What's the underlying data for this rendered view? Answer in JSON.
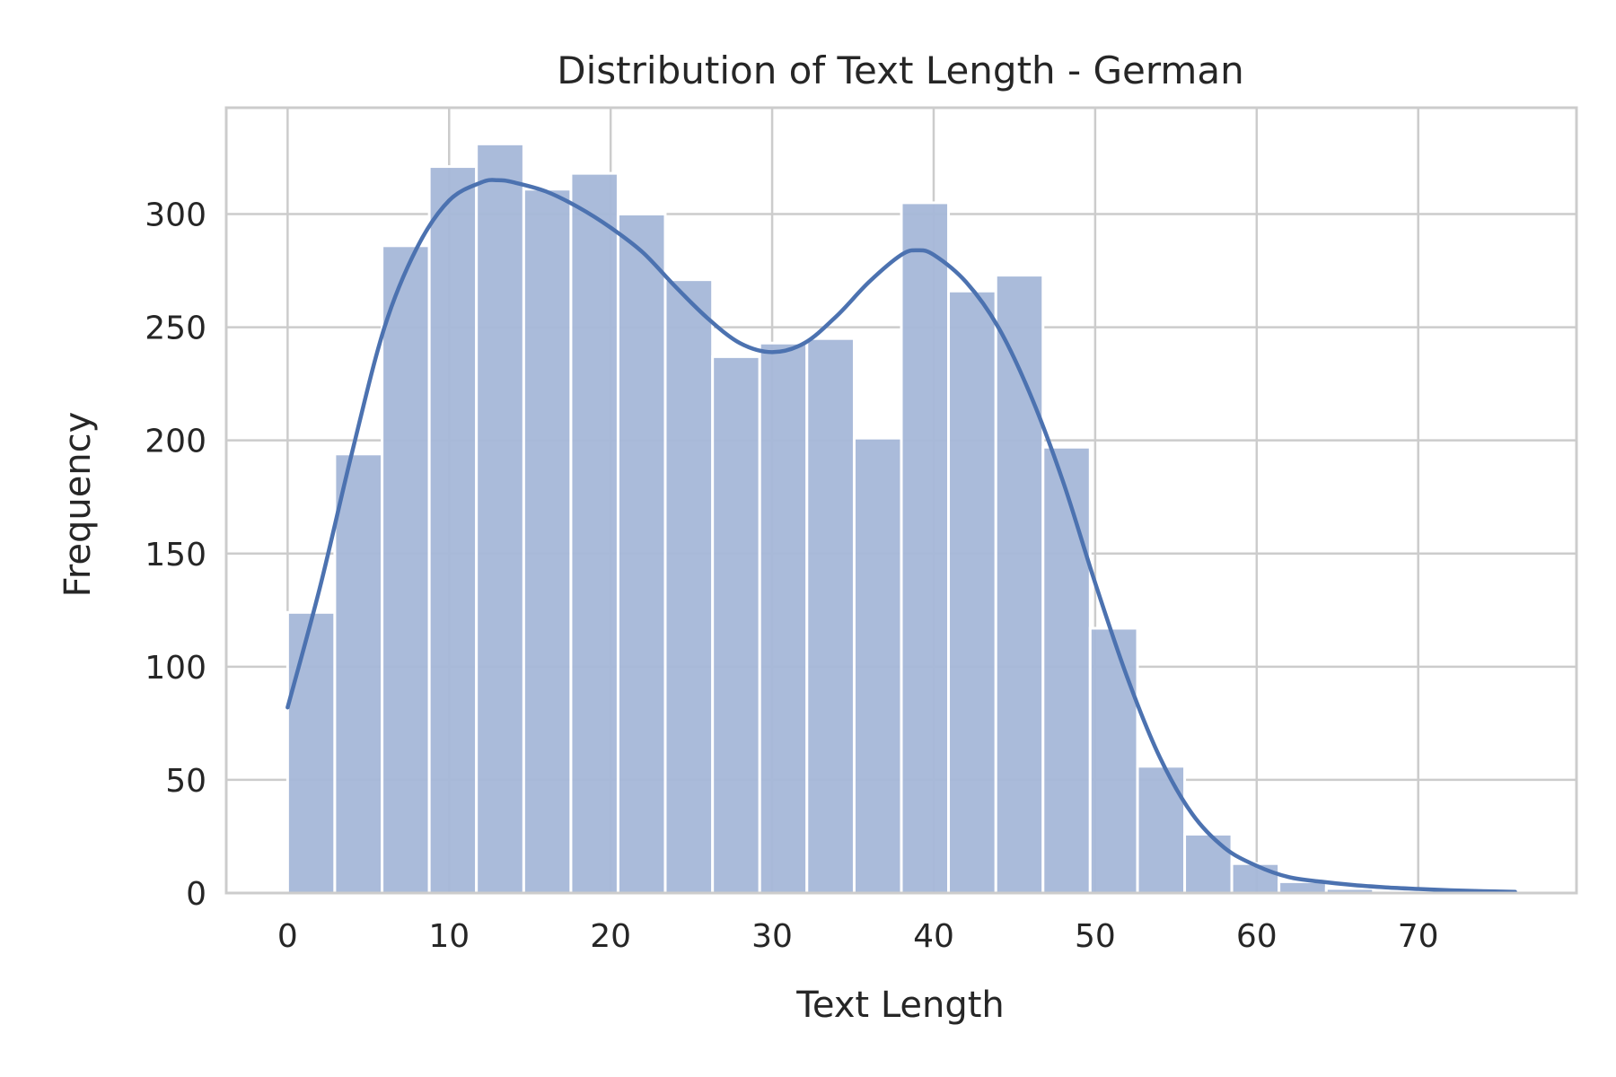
{
  "chart_data": {
    "type": "bar",
    "title": "Distribution of Text Length - German",
    "xlabel": "Text Length",
    "ylabel": "Frequency",
    "xlim": [
      -3.8,
      79.8
    ],
    "ylim": [
      0,
      347
    ],
    "xticks": [
      0,
      10,
      20,
      30,
      40,
      50,
      60,
      70
    ],
    "yticks": [
      0,
      50,
      100,
      150,
      200,
      250,
      300
    ],
    "bin_edges": [
      0,
      2.92,
      5.85,
      8.77,
      11.69,
      14.62,
      17.54,
      20.46,
      23.38,
      26.31,
      29.23,
      32.15,
      35.08,
      38.0,
      40.92,
      43.85,
      46.77,
      49.69,
      52.62,
      55.54,
      58.46,
      61.38,
      64.31,
      67.23,
      70.15,
      73.08,
      76.0
    ],
    "values": [
      124,
      194,
      286,
      321,
      331,
      311,
      318,
      300,
      271,
      237,
      243,
      245,
      201,
      305,
      266,
      273,
      197,
      117,
      56,
      26,
      13,
      5,
      2,
      1,
      1,
      1
    ],
    "kde": {
      "x": [
        0,
        2,
        4,
        6,
        8,
        10,
        12,
        13,
        14,
        16,
        18,
        20,
        22,
        24,
        26,
        28,
        30,
        32,
        34,
        36,
        38,
        39,
        40,
        42,
        44,
        46,
        48,
        50,
        52,
        54,
        56,
        58,
        60,
        62,
        64,
        66,
        68,
        70,
        72,
        74,
        76
      ],
      "y": [
        82,
        135,
        195,
        250,
        285,
        306,
        314,
        315,
        314,
        310,
        303,
        294,
        283,
        268,
        254,
        243,
        239,
        243,
        255,
        270,
        282,
        284,
        282,
        270,
        250,
        220,
        182,
        137,
        95,
        60,
        35,
        20,
        12,
        7,
        5,
        3.5,
        2.5,
        1.8,
        1.2,
        0.8,
        0.5
      ]
    },
    "grid": true,
    "colors": {
      "bar_fill": "#a5b7d8",
      "bar_edge": "#ffffff",
      "kde_line": "#4c72b0",
      "grid": "#cccccc",
      "frame": "#cccccc",
      "text": "#262626"
    }
  }
}
